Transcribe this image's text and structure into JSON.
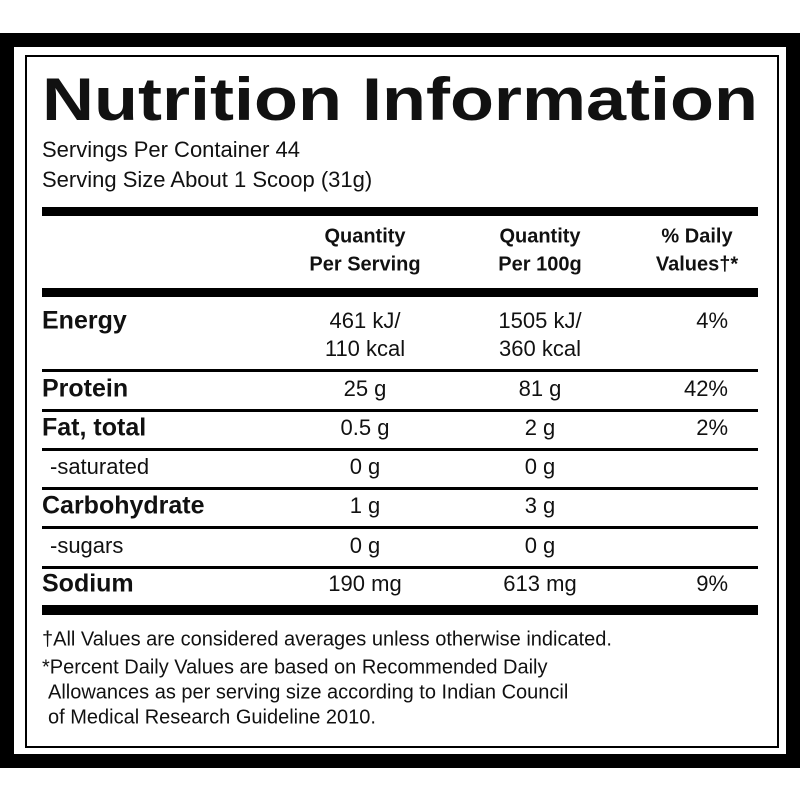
{
  "title": "Nutrition Information",
  "servings": "Servings Per Container 44",
  "serving_size": "Serving Size About 1 Scoop (31g)",
  "table": {
    "header": [
      [
        "Quantity",
        "Per Serving"
      ],
      [
        "Quantity",
        "Per 100g"
      ],
      [
        "% Daily",
        "Values†*"
      ]
    ],
    "rows": [
      {
        "name": "Energy",
        "cells": [
          [
            "461 kJ/",
            "110 kcal"
          ],
          [
            "1505 kJ/",
            "360 kcal"
          ],
          [
            "4%"
          ]
        ]
      },
      {
        "name": "Protein",
        "cells": [
          [
            "25 g"
          ],
          [
            "81 g"
          ],
          [
            "42%"
          ]
        ]
      },
      {
        "name": "Fat, total",
        "cells": [
          [
            "0.5 g"
          ],
          [
            "2 g"
          ],
          [
            "2%"
          ]
        ]
      },
      {
        "name": "-saturated",
        "sub": true,
        "cells": [
          [
            "0 g"
          ],
          [
            "0 g"
          ]
        ]
      },
      {
        "name": "Carbohydrate",
        "cells": [
          [
            "1 g"
          ],
          [
            "3 g"
          ]
        ]
      },
      {
        "name": "-sugars",
        "sub": true,
        "cells": [
          [
            "0 g"
          ],
          [
            "0 g"
          ]
        ]
      },
      {
        "name": "Sodium",
        "cells": [
          [
            "190 mg"
          ],
          [
            "613 mg"
          ],
          [
            "9%"
          ]
        ]
      }
    ]
  },
  "footnotes": [
    [
      "†All Values are considered averages unless otherwise indicated."
    ],
    [
      "*Percent Daily Values are based on Recommended Daily",
      "Allowances as per serving size according to Indian Council",
      "of Medical Research Guideline 2010."
    ]
  ]
}
